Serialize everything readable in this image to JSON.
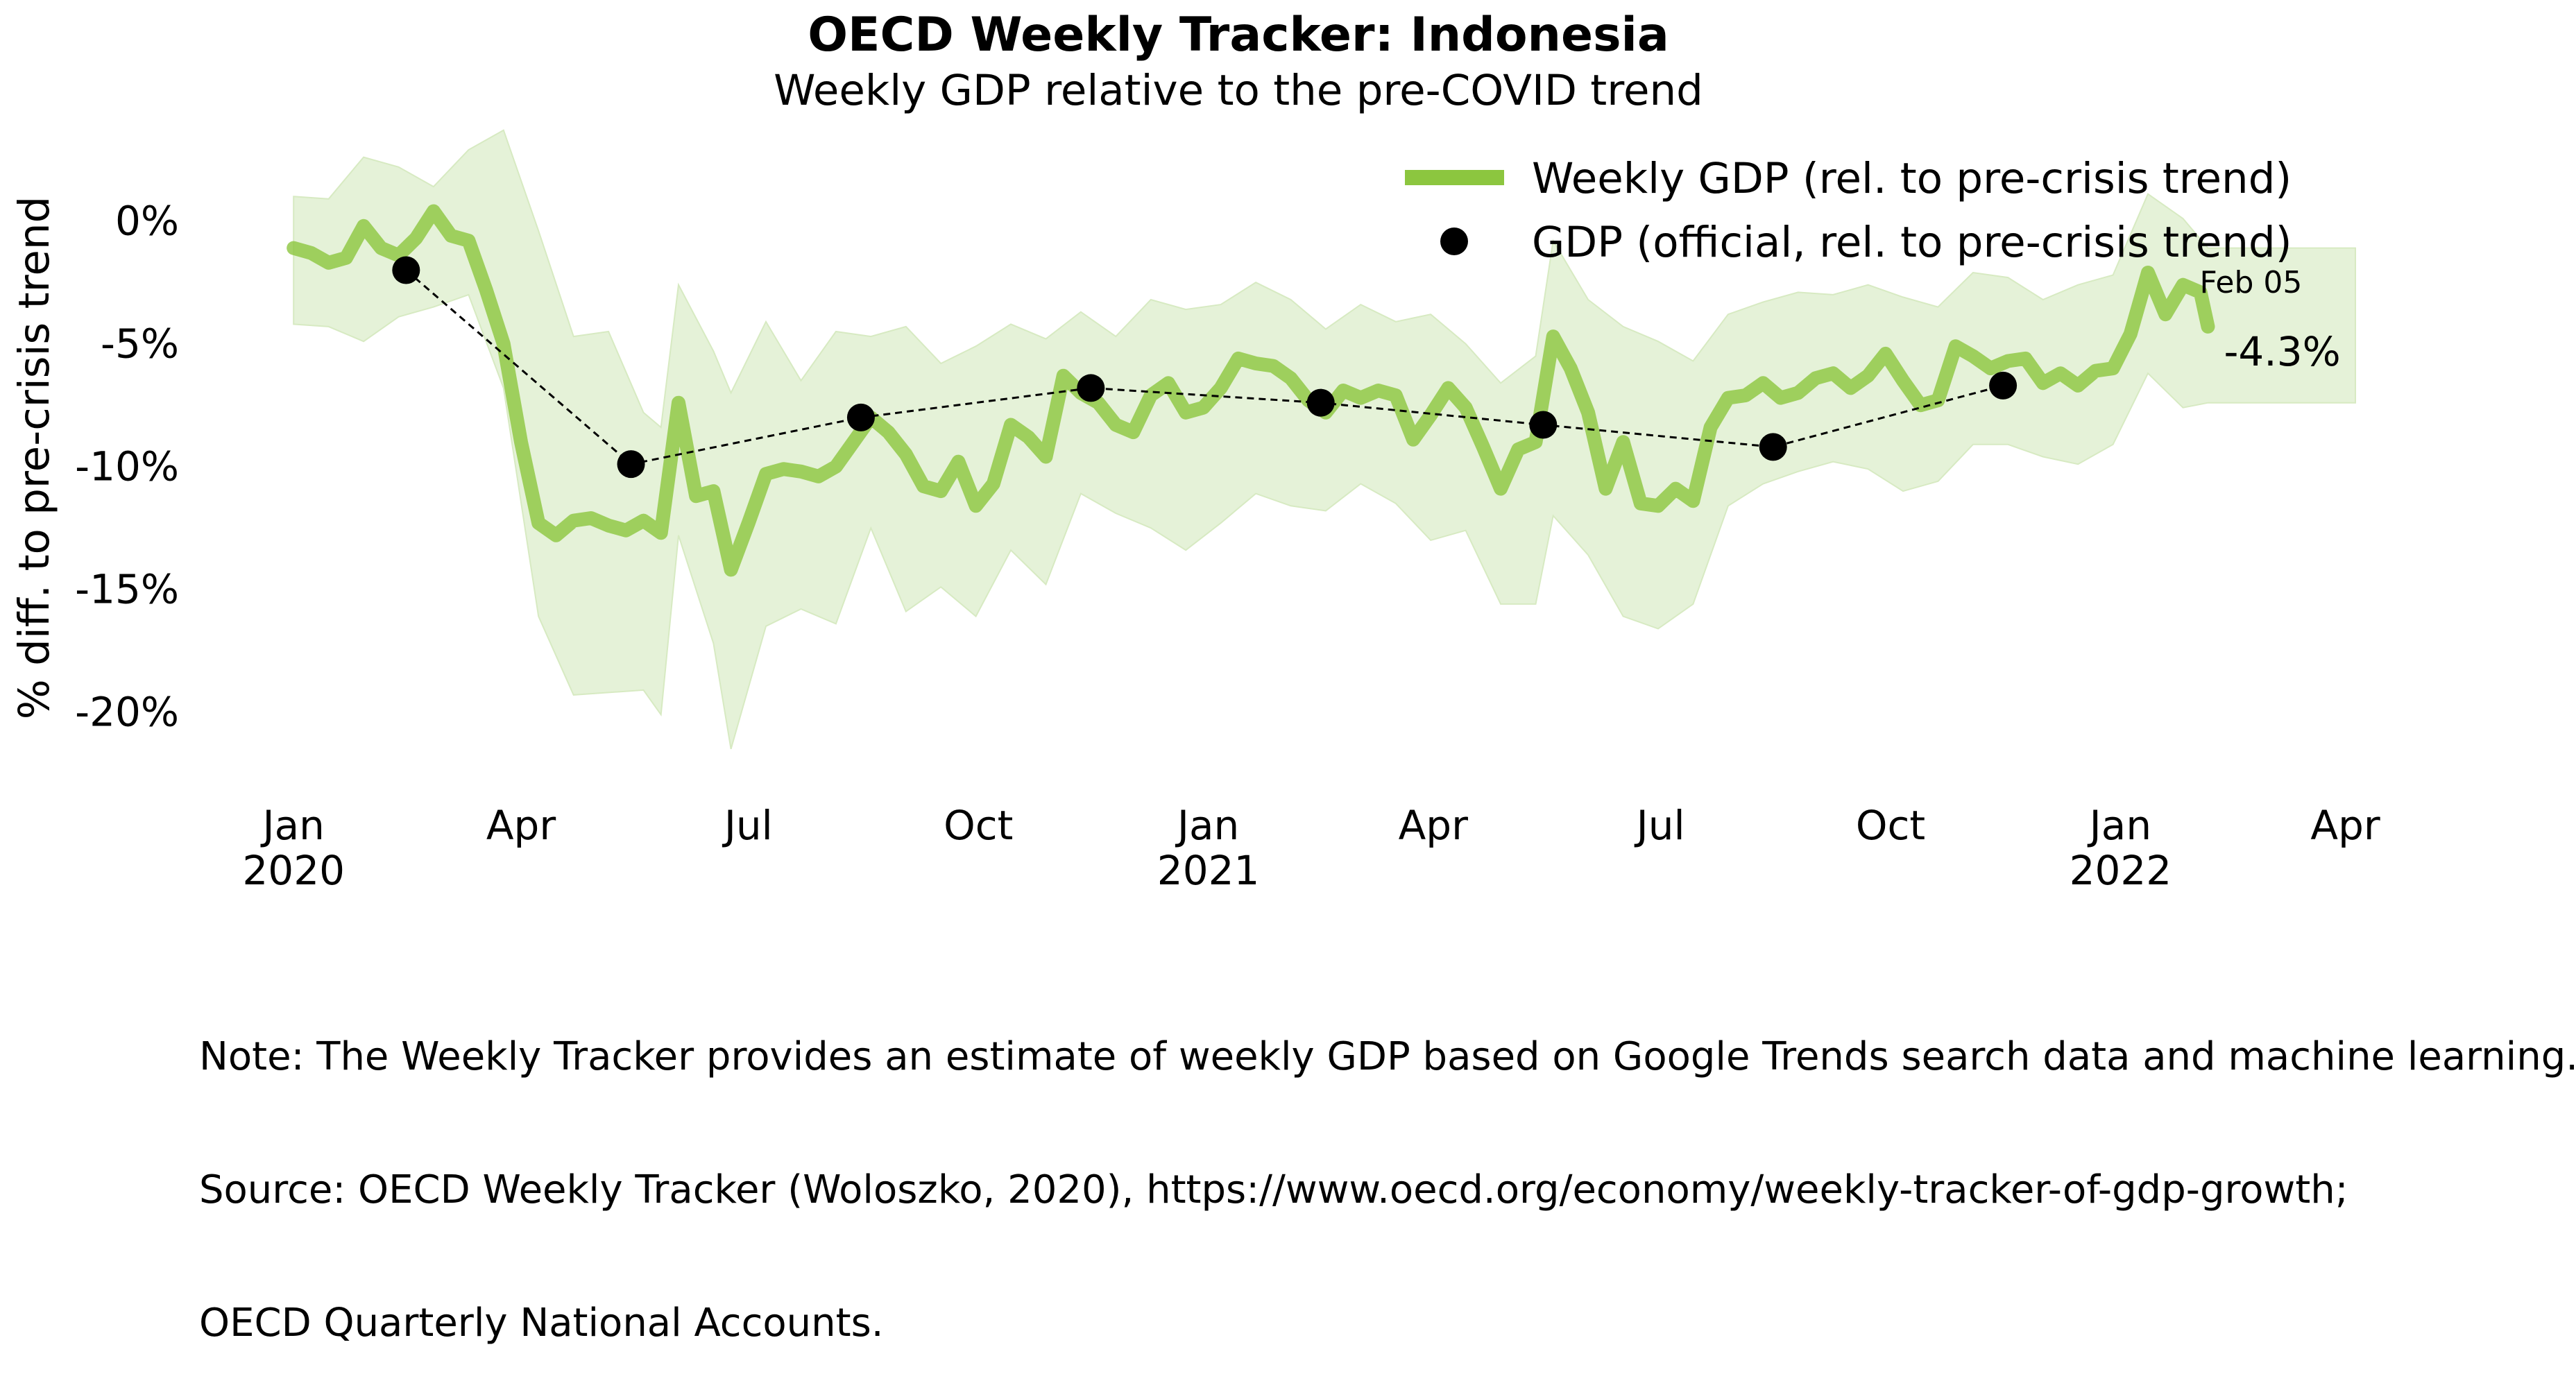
{
  "chart_data": {
    "type": "line",
    "title": "OECD Weekly Tracker: Indonesia",
    "subtitle": "Weekly GDP relative to the pre-COVID trend",
    "ylabel": "% diff. to pre-crisis trend",
    "xlabel": "",
    "y_ticks": [
      {
        "value": 0,
        "label": "0%"
      },
      {
        "value": -5,
        "label": "-5%"
      },
      {
        "value": -10,
        "label": "-10%"
      },
      {
        "value": -15,
        "label": "-15%"
      },
      {
        "value": -20,
        "label": "-20%"
      }
    ],
    "x_ticks": [
      {
        "date": "2020-01-01",
        "label": "Jan",
        "year": "2020"
      },
      {
        "date": "2020-04-01",
        "label": "Apr",
        "year": ""
      },
      {
        "date": "2020-07-01",
        "label": "Jul",
        "year": ""
      },
      {
        "date": "2020-10-01",
        "label": "Oct",
        "year": ""
      },
      {
        "date": "2021-01-01",
        "label": "Jan",
        "year": "2021"
      },
      {
        "date": "2021-04-01",
        "label": "Apr",
        "year": ""
      },
      {
        "date": "2021-07-01",
        "label": "Jul",
        "year": ""
      },
      {
        "date": "2021-10-01",
        "label": "Oct",
        "year": ""
      },
      {
        "date": "2022-01-01",
        "label": "Jan",
        "year": "2022"
      },
      {
        "date": "2022-04-01",
        "label": "Apr",
        "year": ""
      }
    ],
    "xlim": [
      "2019-12-20",
      "2022-04-05"
    ],
    "ylim": [
      -23.2,
      4.2
    ],
    "grid": false,
    "legend_position": "top-right",
    "colors": {
      "weekly": "#8cc63f",
      "band": "#e5f2d8",
      "official": "#000000"
    },
    "series": [
      {
        "name": "Weekly GDP (rel. to pre-crisis trend)",
        "style": "line",
        "points": [
          [
            "2020-01-01",
            -1.1
          ],
          [
            "2020-01-08",
            -1.3
          ],
          [
            "2020-01-15",
            -1.7
          ],
          [
            "2020-01-22",
            -1.5
          ],
          [
            "2020-01-29",
            -0.2
          ],
          [
            "2020-02-05",
            -1.1
          ],
          [
            "2020-02-12",
            -1.4
          ],
          [
            "2020-02-19",
            -0.7
          ],
          [
            "2020-02-26",
            0.4
          ],
          [
            "2020-03-04",
            -0.6
          ],
          [
            "2020-03-11",
            -0.8
          ],
          [
            "2020-03-18",
            -2.8
          ],
          [
            "2020-03-25",
            -5.0
          ],
          [
            "2020-04-01",
            -9.0
          ],
          [
            "2020-04-08",
            -12.3
          ],
          [
            "2020-04-15",
            -12.8
          ],
          [
            "2020-04-22",
            -12.2
          ],
          [
            "2020-04-29",
            -12.1
          ],
          [
            "2020-05-06",
            -12.4
          ],
          [
            "2020-05-13",
            -12.6
          ],
          [
            "2020-05-20",
            -12.2
          ],
          [
            "2020-05-27",
            -12.7
          ],
          [
            "2020-06-03",
            -7.4
          ],
          [
            "2020-06-10",
            -11.2
          ],
          [
            "2020-06-17",
            -11.0
          ],
          [
            "2020-06-24",
            -14.2
          ],
          [
            "2020-07-01",
            -12.3
          ],
          [
            "2020-07-08",
            -10.3
          ],
          [
            "2020-07-15",
            -10.1
          ],
          [
            "2020-07-22",
            -10.2
          ],
          [
            "2020-07-29",
            -10.4
          ],
          [
            "2020-08-05",
            -10.0
          ],
          [
            "2020-08-12",
            -9.0
          ],
          [
            "2020-08-19",
            -8.0
          ],
          [
            "2020-08-26",
            -8.6
          ],
          [
            "2020-09-02",
            -9.5
          ],
          [
            "2020-09-09",
            -10.8
          ],
          [
            "2020-09-16",
            -11.0
          ],
          [
            "2020-09-23",
            -9.8
          ],
          [
            "2020-09-30",
            -11.6
          ],
          [
            "2020-10-07",
            -10.7
          ],
          [
            "2020-10-14",
            -8.3
          ],
          [
            "2020-10-21",
            -8.8
          ],
          [
            "2020-10-28",
            -9.6
          ],
          [
            "2020-11-04",
            -6.3
          ],
          [
            "2020-11-11",
            -7.0
          ],
          [
            "2020-11-18",
            -7.4
          ],
          [
            "2020-11-25",
            -8.3
          ],
          [
            "2020-12-02",
            -8.6
          ],
          [
            "2020-12-09",
            -7.1
          ],
          [
            "2020-12-16",
            -6.6
          ],
          [
            "2020-12-23",
            -7.8
          ],
          [
            "2020-12-30",
            -7.6
          ],
          [
            "2021-01-06",
            -6.8
          ],
          [
            "2021-01-13",
            -5.6
          ],
          [
            "2021-01-20",
            -5.8
          ],
          [
            "2021-01-27",
            -5.9
          ],
          [
            "2021-02-03",
            -6.4
          ],
          [
            "2021-02-10",
            -7.3
          ],
          [
            "2021-02-17",
            -7.8
          ],
          [
            "2021-02-24",
            -6.9
          ],
          [
            "2021-03-03",
            -7.2
          ],
          [
            "2021-03-10",
            -6.9
          ],
          [
            "2021-03-17",
            -7.1
          ],
          [
            "2021-03-24",
            -8.9
          ],
          [
            "2021-03-31",
            -7.9
          ],
          [
            "2021-04-07",
            -6.8
          ],
          [
            "2021-04-14",
            -7.6
          ],
          [
            "2021-04-21",
            -9.2
          ],
          [
            "2021-04-28",
            -10.9
          ],
          [
            "2021-05-05",
            -9.3
          ],
          [
            "2021-05-12",
            -9.0
          ],
          [
            "2021-05-19",
            -4.7
          ],
          [
            "2021-05-26",
            -6.0
          ],
          [
            "2021-06-02",
            -7.8
          ],
          [
            "2021-06-09",
            -10.9
          ],
          [
            "2021-06-16",
            -9.0
          ],
          [
            "2021-06-23",
            -11.5
          ],
          [
            "2021-06-30",
            -11.6
          ],
          [
            "2021-07-07",
            -10.9
          ],
          [
            "2021-07-14",
            -11.4
          ],
          [
            "2021-07-21",
            -8.4
          ],
          [
            "2021-07-28",
            -7.2
          ],
          [
            "2021-08-04",
            -7.1
          ],
          [
            "2021-08-11",
            -6.6
          ],
          [
            "2021-08-18",
            -7.2
          ],
          [
            "2021-08-25",
            -7.0
          ],
          [
            "2021-09-01",
            -6.4
          ],
          [
            "2021-09-08",
            -6.2
          ],
          [
            "2021-09-15",
            -6.8
          ],
          [
            "2021-09-22",
            -6.3
          ],
          [
            "2021-09-29",
            -5.4
          ],
          [
            "2021-10-06",
            -6.5
          ],
          [
            "2021-10-13",
            -7.5
          ],
          [
            "2021-10-20",
            -7.3
          ],
          [
            "2021-10-27",
            -5.1
          ],
          [
            "2021-11-03",
            -5.5
          ],
          [
            "2021-11-10",
            -6.0
          ],
          [
            "2021-11-17",
            -5.7
          ],
          [
            "2021-11-24",
            -5.6
          ],
          [
            "2021-12-01",
            -6.6
          ],
          [
            "2021-12-08",
            -6.2
          ],
          [
            "2021-12-15",
            -6.7
          ],
          [
            "2021-12-22",
            -6.1
          ],
          [
            "2021-12-29",
            -6.0
          ],
          [
            "2022-01-05",
            -4.6
          ],
          [
            "2022-01-12",
            -2.1
          ],
          [
            "2022-01-19",
            -3.8
          ],
          [
            "2022-01-26",
            -2.6
          ],
          [
            "2022-02-02",
            -2.9
          ],
          [
            "2022-02-05",
            -4.3
          ]
        ]
      },
      {
        "name": "GDP (official, rel. to pre-crisis trend)",
        "style": "markers+dashed",
        "points": [
          [
            "2020-02-15",
            -2.0
          ],
          [
            "2020-05-15",
            -9.9
          ],
          [
            "2020-08-15",
            -8.0
          ],
          [
            "2020-11-15",
            -6.8
          ],
          [
            "2021-02-15",
            -7.4
          ],
          [
            "2021-05-15",
            -8.3
          ],
          [
            "2021-08-15",
            -9.2
          ],
          [
            "2021-11-15",
            -6.7
          ]
        ]
      }
    ],
    "band": [
      [
        "2020-01-01",
        1.0,
        -4.2
      ],
      [
        "2020-01-15",
        0.9,
        -4.3
      ],
      [
        "2020-01-29",
        2.6,
        -4.9
      ],
      [
        "2020-02-12",
        2.2,
        -3.9
      ],
      [
        "2020-02-26",
        1.4,
        -3.5
      ],
      [
        "2020-03-11",
        2.9,
        -3.0
      ],
      [
        "2020-03-25",
        3.7,
        -6.8
      ],
      [
        "2020-04-08",
        -0.4,
        -16.1
      ],
      [
        "2020-04-22",
        -4.7,
        -19.3
      ],
      [
        "2020-05-06",
        -4.5,
        -19.2
      ],
      [
        "2020-05-20",
        -7.8,
        -19.1
      ],
      [
        "2020-05-27",
        -8.4,
        -20.1
      ],
      [
        "2020-06-03",
        -2.6,
        -12.8
      ],
      [
        "2020-06-17",
        -5.3,
        -17.2
      ],
      [
        "2020-06-24",
        -7.0,
        -21.5
      ],
      [
        "2020-07-08",
        -4.1,
        -16.5
      ],
      [
        "2020-07-22",
        -6.5,
        -15.8
      ],
      [
        "2020-08-05",
        -4.5,
        -16.4
      ],
      [
        "2020-08-19",
        -4.7,
        -12.5
      ],
      [
        "2020-09-02",
        -4.3,
        -15.9
      ],
      [
        "2020-09-16",
        -5.8,
        -14.9
      ],
      [
        "2020-09-30",
        -5.1,
        -16.1
      ],
      [
        "2020-10-14",
        -4.2,
        -13.4
      ],
      [
        "2020-10-28",
        -4.8,
        -14.8
      ],
      [
        "2020-11-11",
        -3.7,
        -11.1
      ],
      [
        "2020-11-25",
        -4.7,
        -11.9
      ],
      [
        "2020-12-09",
        -3.2,
        -12.5
      ],
      [
        "2020-12-23",
        -3.6,
        -13.4
      ],
      [
        "2021-01-06",
        -3.4,
        -12.3
      ],
      [
        "2021-01-20",
        -2.5,
        -11.1
      ],
      [
        "2021-02-03",
        -3.2,
        -11.6
      ],
      [
        "2021-02-17",
        -4.4,
        -11.8
      ],
      [
        "2021-03-03",
        -3.4,
        -10.7
      ],
      [
        "2021-03-17",
        -4.1,
        -11.5
      ],
      [
        "2021-03-31",
        -3.8,
        -13.0
      ],
      [
        "2021-04-14",
        -5.0,
        -12.6
      ],
      [
        "2021-04-28",
        -6.6,
        -15.6
      ],
      [
        "2021-05-12",
        -5.5,
        -15.6
      ],
      [
        "2021-05-19",
        -0.8,
        -12.0
      ],
      [
        "2021-06-02",
        -3.2,
        -13.6
      ],
      [
        "2021-06-16",
        -4.3,
        -16.1
      ],
      [
        "2021-06-30",
        -4.9,
        -16.6
      ],
      [
        "2021-07-14",
        -5.7,
        -15.6
      ],
      [
        "2021-07-28",
        -3.8,
        -11.6
      ],
      [
        "2021-08-11",
        -3.3,
        -10.7
      ],
      [
        "2021-08-25",
        -2.9,
        -10.2
      ],
      [
        "2021-09-08",
        -3.0,
        -9.8
      ],
      [
        "2021-09-22",
        -2.6,
        -10.1
      ],
      [
        "2021-10-06",
        -3.1,
        -11.0
      ],
      [
        "2021-10-20",
        -3.5,
        -10.6
      ],
      [
        "2021-11-03",
        -2.1,
        -9.1
      ],
      [
        "2021-11-17",
        -2.3,
        -9.1
      ],
      [
        "2021-12-01",
        -3.2,
        -9.6
      ],
      [
        "2021-12-15",
        -2.6,
        -9.9
      ],
      [
        "2021-12-29",
        -2.2,
        -9.1
      ],
      [
        "2022-01-12",
        1.1,
        -6.2
      ],
      [
        "2022-01-26",
        0.1,
        -7.6
      ],
      [
        "2022-02-05",
        -1.1,
        -7.4
      ],
      [
        "2022-04-05",
        -1.1,
        -7.4
      ]
    ],
    "annotations": [
      {
        "date": "2022-02-05",
        "label": "Feb 05",
        "value_label": "-4.3%"
      }
    ]
  },
  "note": {
    "line1": "Note: The Weekly Tracker provides an estimate of weekly GDP based on Google Trends search data and machine learning.",
    "line2": "Source: OECD Weekly Tracker (Woloszko, 2020), https://www.oecd.org/economy/weekly-tracker-of-gdp-growth;",
    "line3": "OECD Quarterly National Accounts."
  }
}
